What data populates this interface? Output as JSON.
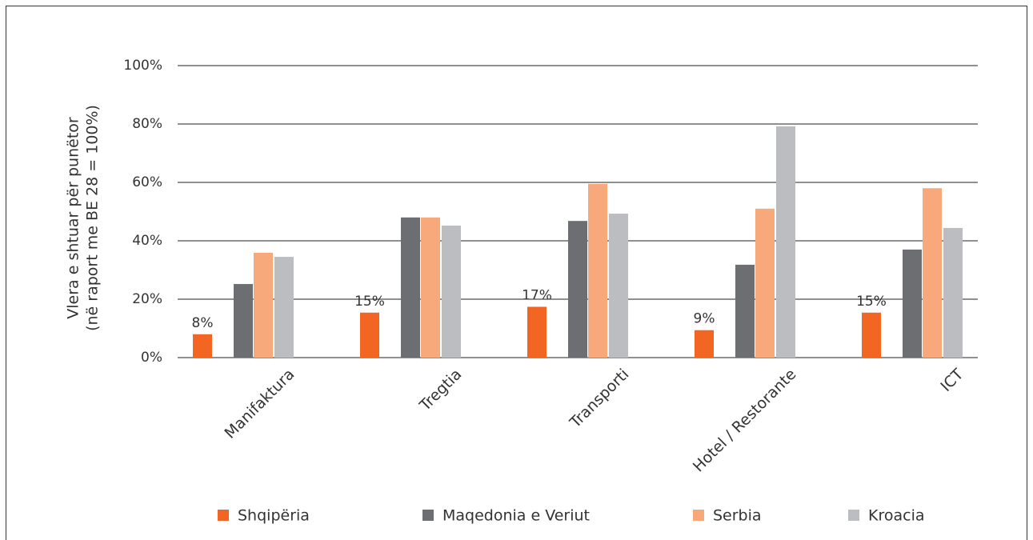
{
  "chart_data": {
    "type": "bar",
    "y_label": [
      "Vlera e shtuar për punëtor",
      "(në raport me BE 28 = 100%)"
    ],
    "categories": [
      "Manifaktura",
      "Tregtia",
      "Transporti",
      "Hotel / Restorante",
      "ICT"
    ],
    "series": [
      {
        "name": "Shqipëria",
        "color": "#f26522",
        "values": [
          8,
          15.4,
          17.4,
          9.4,
          15.4
        ],
        "value_labels": [
          "8%",
          "15%",
          "17%",
          "9%",
          "15%"
        ]
      },
      {
        "name": "Maqedonia e Veriut",
        "color": "#6d6e71",
        "values": [
          25.2,
          48,
          46.8,
          31.8,
          37
        ]
      },
      {
        "name": "Serbia",
        "color": "#f7a97b",
        "values": [
          35.9,
          48,
          59.5,
          51,
          58
        ]
      },
      {
        "name": "Kroacia",
        "color": "#bcbdc0",
        "values": [
          34.5,
          45.2,
          49.3,
          79.2,
          44.4
        ]
      }
    ],
    "ylim": [
      0,
      100
    ],
    "yticks": [
      {
        "value": 0,
        "label": "0%"
      },
      {
        "value": 20,
        "label": "20%"
      },
      {
        "value": 40,
        "label": "40%"
      },
      {
        "value": 60,
        "label": "60%"
      },
      {
        "value": 80,
        "label": "80%"
      },
      {
        "value": 100,
        "label": "100%"
      }
    ],
    "grid": true,
    "legend": "bottom"
  }
}
